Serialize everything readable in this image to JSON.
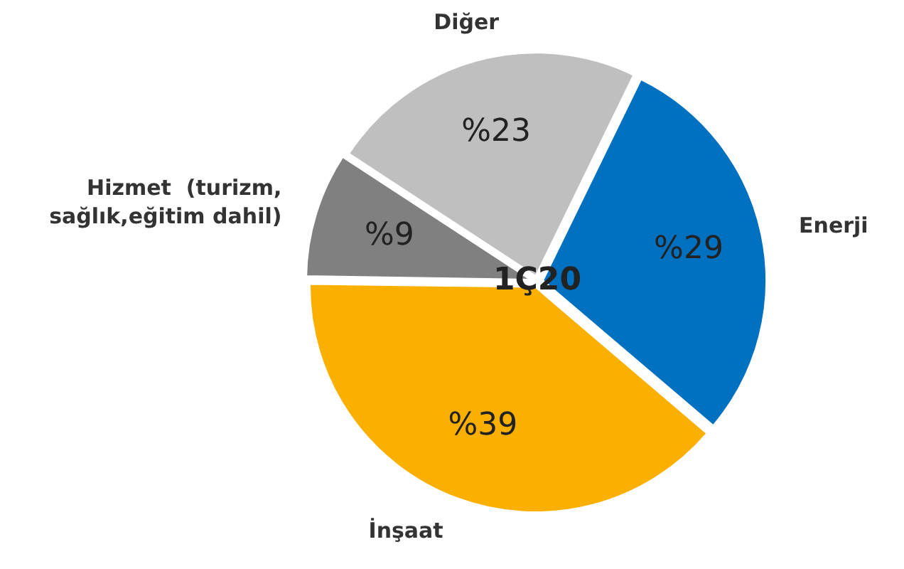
{
  "chart_data": {
    "type": "pie",
    "categories": [
      "Enerji",
      "İnşaat",
      "Hizmet  (turizm, sağlık,eğitim dahil)",
      "Diğer"
    ],
    "values": [
      29,
      39,
      9,
      23
    ],
    "value_labels": [
      "%29",
      "%39",
      "%9",
      "%23"
    ],
    "colors": [
      "#0070c0",
      "#fbb000",
      "#808080",
      "#bfbfbf"
    ],
    "annotations": [
      "1Ç20"
    ],
    "legend": false
  }
}
